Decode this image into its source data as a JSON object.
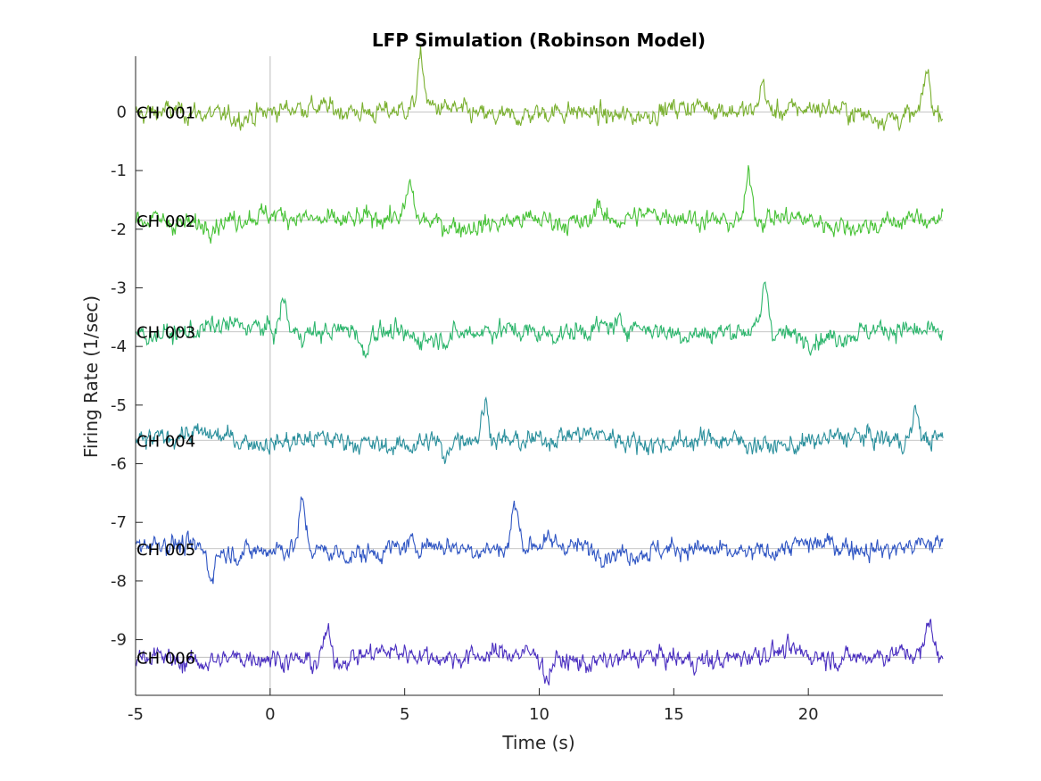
{
  "chart_data": {
    "type": "line",
    "title": "LFP Simulation (Robinson Model)",
    "xlabel": "Time (s)",
    "ylabel": "Firing Rate (1/sec)",
    "xlim": [
      -5,
      25
    ],
    "ylim": [
      -9.95,
      0.95
    ],
    "xticks": [
      -5,
      0,
      5,
      10,
      15,
      20
    ],
    "xtick_labels": [
      "-5",
      "0",
      "5",
      "10",
      "15",
      "20"
    ],
    "yticks": [
      0,
      -1,
      -2,
      -3,
      -4,
      -5,
      -6,
      -7,
      -8,
      -9
    ],
    "ytick_labels": [
      "0",
      "-1",
      "-2",
      "-3",
      "-4",
      "-5",
      "-6",
      "-7",
      "-8",
      "-9"
    ],
    "event_line_x": 0,
    "grid": false,
    "series": [
      {
        "name": "CH 001",
        "baseline": 0.0,
        "color": "#7ab030",
        "peaks": [
          [
            5.6,
            0.95
          ],
          [
            24.4,
            0.85
          ],
          [
            18.3,
            0.6
          ]
        ]
      },
      {
        "name": "CH 002",
        "baseline": -1.85,
        "color": "#47c236",
        "peaks": [
          [
            17.8,
            -0.95
          ],
          [
            5.2,
            -1.2
          ],
          [
            12.2,
            -1.35
          ]
        ]
      },
      {
        "name": "CH 003",
        "baseline": -3.75,
        "color": "#2cb56c",
        "peaks": [
          [
            18.4,
            -2.8
          ],
          [
            0.5,
            -3.1
          ],
          [
            3.5,
            -4.3
          ]
        ]
      },
      {
        "name": "CH 004",
        "baseline": -5.6,
        "color": "#2a8f9c",
        "peaks": [
          [
            8.0,
            -4.9
          ],
          [
            24.0,
            -5.0
          ],
          [
            6.5,
            -6.1
          ]
        ]
      },
      {
        "name": "CH 005",
        "baseline": -7.45,
        "color": "#2f55c3",
        "peaks": [
          [
            1.2,
            -6.55
          ],
          [
            9.1,
            -6.6
          ],
          [
            -2.2,
            -7.95
          ]
        ]
      },
      {
        "name": "CH 006",
        "baseline": -9.3,
        "color": "#4a2fc0",
        "peaks": [
          [
            24.5,
            -8.5
          ],
          [
            2.1,
            -8.7
          ],
          [
            10.3,
            -9.75
          ]
        ]
      }
    ]
  }
}
